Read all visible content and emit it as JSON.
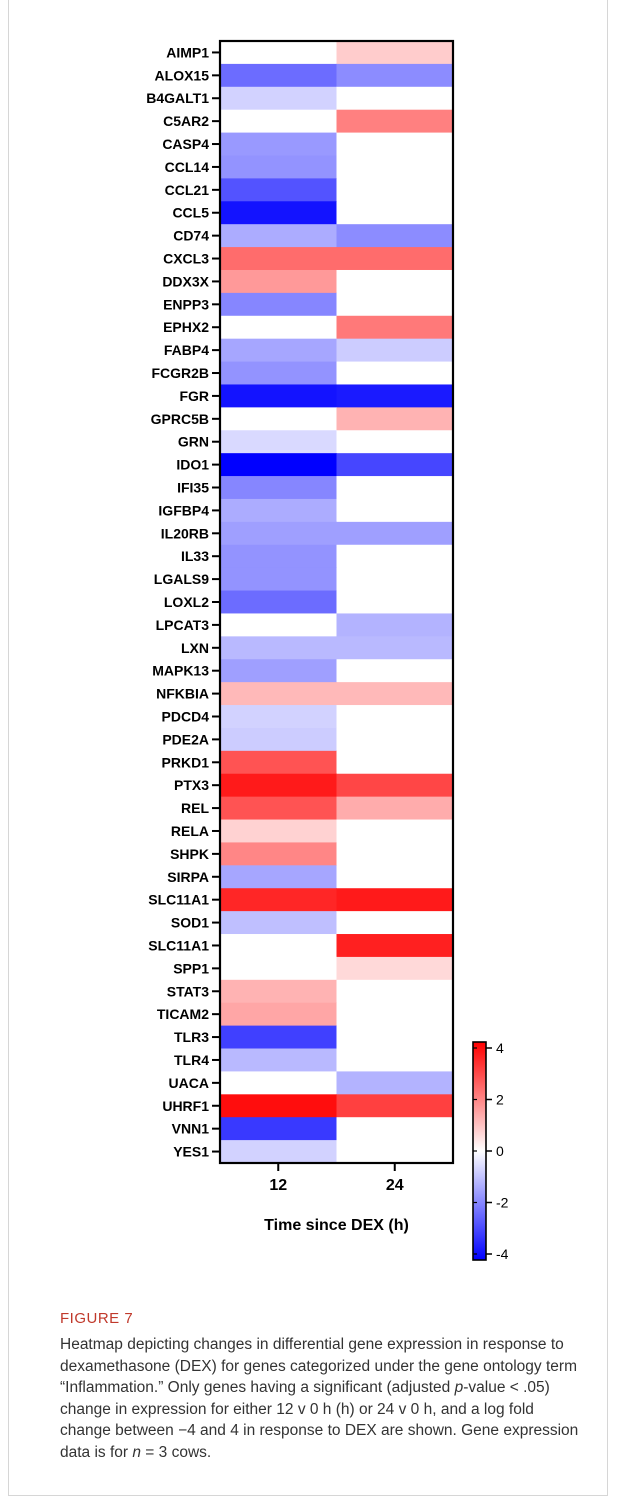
{
  "figure": {
    "label": "FIGURE 7",
    "caption_parts": [
      "Heatmap depicting changes in differential gene expression in response to dexamethasone (DEX) for genes categorized under the gene ontology term “Inflammation.” Only genes having a significant (adjusted ",
      "p",
      "-value < .05) change in expression for either 12 v 0 h (h) or 24 v 0 h, and a log fold change between −4 and 4 in response to DEX are shown. Gene expression data is for ",
      "n",
      " = 3 cows."
    ]
  },
  "chart_data": {
    "type": "heatmap",
    "title": "",
    "xlabel": "Time since DEX (h)",
    "ylabel": "",
    "x": [
      "12",
      "24"
    ],
    "y": [
      "AIMP1",
      "ALOX15",
      "B4GALT1",
      "C5AR2",
      "CASP4",
      "CCL14",
      "CCL21",
      "CCL5",
      "CD74",
      "CXCL3",
      "DDX3X",
      "ENPP3",
      "EPHX2",
      "FABP4",
      "FCGR2B",
      "FGR",
      "GPRC5B",
      "GRN",
      "IDO1",
      "IFI35",
      "IGFBP4",
      "IL20RB",
      "IL33",
      "LGALS9",
      "LOXL2",
      "LPCAT3",
      "LXN",
      "MAPK13",
      "NFKBIA",
      "PDCD4",
      "PDE2A",
      "PRKD1",
      "PTX3",
      "REL",
      "RELA",
      "SHPK",
      "SIRPA",
      "SLC11A1",
      "SOD1",
      "SLC11A1",
      "SPP1",
      "STAT3",
      "TICAM2",
      "TLR3",
      "TLR4",
      "UACA",
      "UHRF1",
      "VNN1",
      "YES1"
    ],
    "values": [
      [
        0,
        0.8
      ],
      [
        -2.3,
        -1.8
      ],
      [
        -0.7,
        0
      ],
      [
        0,
        2.0
      ],
      [
        -1.6,
        0
      ],
      [
        -1.7,
        0
      ],
      [
        -2.7,
        0
      ],
      [
        -3.7,
        0
      ],
      [
        -1.3,
        -1.8
      ],
      [
        2.3,
        2.3
      ],
      [
        1.6,
        0
      ],
      [
        -1.9,
        0
      ],
      [
        0,
        2.1
      ],
      [
        -1.4,
        -0.8
      ],
      [
        -1.7,
        0
      ],
      [
        -3.7,
        -3.6
      ],
      [
        0,
        1.2
      ],
      [
        -0.6,
        0
      ],
      [
        -4.0,
        -2.9
      ],
      [
        -1.9,
        0
      ],
      [
        -1.3,
        0
      ],
      [
        -1.5,
        -1.5
      ],
      [
        -1.7,
        0
      ],
      [
        -1.7,
        0
      ],
      [
        -2.3,
        0
      ],
      [
        0,
        -1.2
      ],
      [
        -1.1,
        -1.1
      ],
      [
        -1.5,
        0
      ],
      [
        1.1,
        1.1
      ],
      [
        -0.7,
        0
      ],
      [
        -0.8,
        0
      ],
      [
        2.7,
        0
      ],
      [
        3.6,
        2.9
      ],
      [
        2.7,
        1.3
      ],
      [
        0.7,
        0
      ],
      [
        1.9,
        0
      ],
      [
        -1.4,
        0
      ],
      [
        3.4,
        3.6
      ],
      [
        -1.0,
        0
      ],
      [
        0,
        3.5
      ],
      [
        0,
        0.6
      ],
      [
        1.2,
        0
      ],
      [
        1.4,
        0
      ],
      [
        -3.0,
        0
      ],
      [
        -1.1,
        0
      ],
      [
        0,
        -1.2
      ],
      [
        3.8,
        3.0
      ],
      [
        -3.1,
        0
      ],
      [
        -0.7,
        0
      ]
    ],
    "colorscale": {
      "min": -4,
      "max": 4,
      "low_color": "#0000ff",
      "mid_color": "#ffffff",
      "high_color": "#ff0000",
      "ticks": [
        "4",
        "2",
        "0",
        "-2",
        "-4"
      ],
      "tick_values": [
        4,
        2,
        0,
        -2,
        -4
      ]
    },
    "legend_placement": "right",
    "grid": false
  }
}
